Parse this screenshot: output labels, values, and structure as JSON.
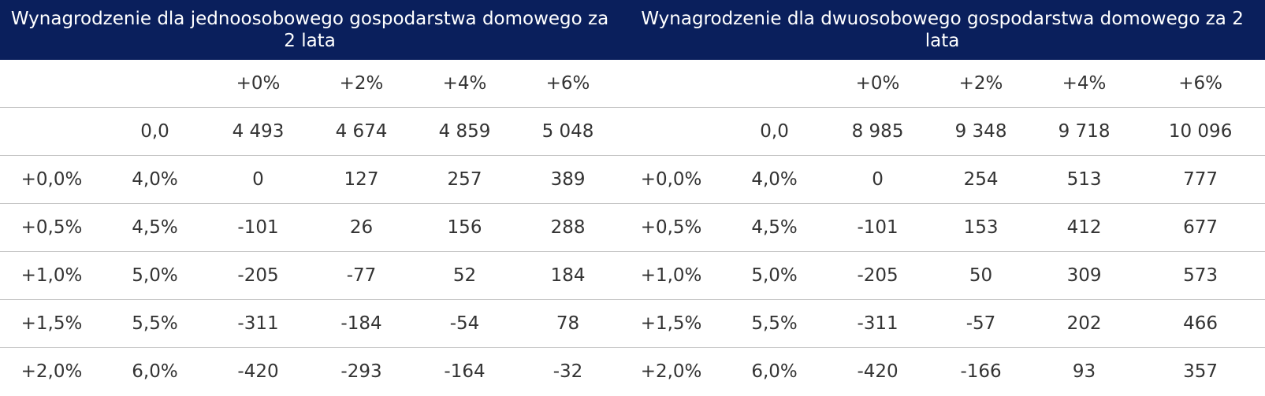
{
  "headers": {
    "single": "Wynagrodzenie dla jednoosobowego gospodarstwa domowego za 2 lata",
    "double": "Wynagrodzenie dla dwuosobowego gospodarstwa domowego za 2 lata"
  },
  "rows": [
    [
      "",
      "",
      "+0%",
      "+2%",
      "+4%",
      "+6%",
      "",
      "",
      "+0%",
      "+2%",
      "+4%",
      "+6%"
    ],
    [
      "",
      "0,0",
      "4 493",
      "4 674",
      "4 859",
      "5 048",
      "",
      "0,0",
      "8 985",
      "9 348",
      "9 718",
      "10 096"
    ],
    [
      "+0,0%",
      "4,0%",
      "0",
      "127",
      "257",
      "389",
      "+0,0%",
      "4,0%",
      "0",
      "254",
      "513",
      "777"
    ],
    [
      "+0,5%",
      "4,5%",
      "-101",
      "26",
      "156",
      "288",
      "+0,5%",
      "4,5%",
      "-101",
      "153",
      "412",
      "677"
    ],
    [
      "+1,0%",
      "5,0%",
      "-205",
      "-77",
      "52",
      "184",
      "+1,0%",
      "5,0%",
      "-205",
      "50",
      "309",
      "573"
    ],
    [
      "+1,5%",
      "5,5%",
      "-311",
      "-184",
      "-54",
      "78",
      "+1,5%",
      "5,5%",
      "-311",
      "-57",
      "202",
      "466"
    ],
    [
      "+2,0%",
      "6,0%",
      "-420",
      "-293",
      "-164",
      "-32",
      "+2,0%",
      "6,0%",
      "-420",
      "-166",
      "93",
      "357"
    ]
  ],
  "colors": {
    "header_bg": "#0a1f5c",
    "header_text": "#ffffff",
    "rule": "#c6c6c6"
  }
}
